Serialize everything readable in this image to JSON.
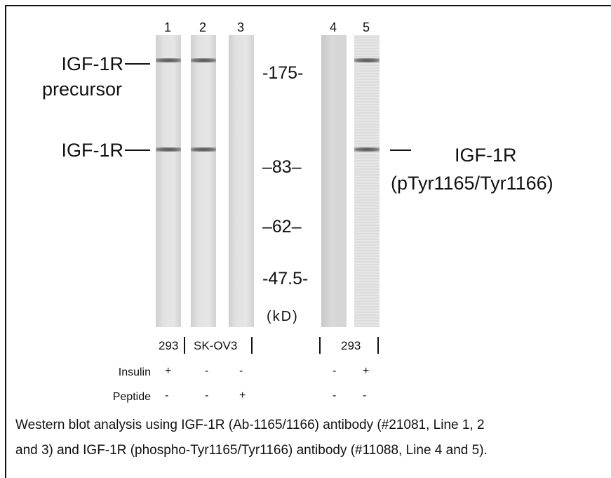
{
  "lanes": [
    "1",
    "2",
    "3",
    "4",
    "5"
  ],
  "left_labels": [
    "IGF-1R",
    "precursor",
    "IGF-1R"
  ],
  "markers": [
    "-175-",
    "–83–",
    "–62–",
    "-47.5-"
  ],
  "marker_unit": "(kD)",
  "right_label": [
    "IGF-1R",
    "(pTyr1165/Tyr1166)"
  ],
  "cell_lines": [
    "293",
    "SK-OV3",
    "293"
  ],
  "treatments": [
    {
      "name": "Insulin",
      "signs": [
        "+",
        "-",
        "-",
        "-",
        "+"
      ]
    },
    {
      "name": "Peptide",
      "signs": [
        "-",
        "-",
        "+",
        "-",
        "-"
      ]
    }
  ],
  "caption": [
    "Western blot analysis using IGF-1R (Ab-1165/1166) antibody (#21081, Line 1, 2",
    "and 3) and IGF-1R (phospho-Tyr1165/Tyr1166) antibody (#11088, Line 4 and 5)."
  ]
}
